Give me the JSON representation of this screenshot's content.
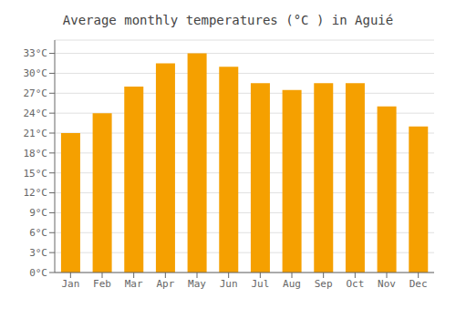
{
  "chart_data": {
    "type": "bar",
    "title": "Average monthly temperatures (°C ) in Aguié",
    "categories": [
      "Jan",
      "Feb",
      "Mar",
      "Apr",
      "May",
      "Jun",
      "Jul",
      "Aug",
      "Sep",
      "Oct",
      "Nov",
      "Dec"
    ],
    "values": [
      21,
      24,
      28,
      31.5,
      33,
      31,
      28.5,
      27.5,
      28.5,
      28.5,
      25,
      22
    ],
    "color": "#F5A000",
    "ylim": [
      0,
      35
    ],
    "yticks": [
      {
        "value": 0,
        "label": "0°C"
      },
      {
        "value": 3,
        "label": "3°C"
      },
      {
        "value": 6,
        "label": "6°C"
      },
      {
        "value": 9,
        "label": "9°C"
      },
      {
        "value": 12,
        "label": "12°C"
      },
      {
        "value": 15,
        "label": "15°C"
      },
      {
        "value": 18,
        "label": "18°C"
      },
      {
        "value": 21,
        "label": "21°C"
      },
      {
        "value": 24,
        "label": "24°C"
      },
      {
        "value": 27,
        "label": "27°C"
      },
      {
        "value": 30,
        "label": "30°C"
      },
      {
        "value": 33,
        "label": "33°C"
      }
    ],
    "grid": true
  }
}
